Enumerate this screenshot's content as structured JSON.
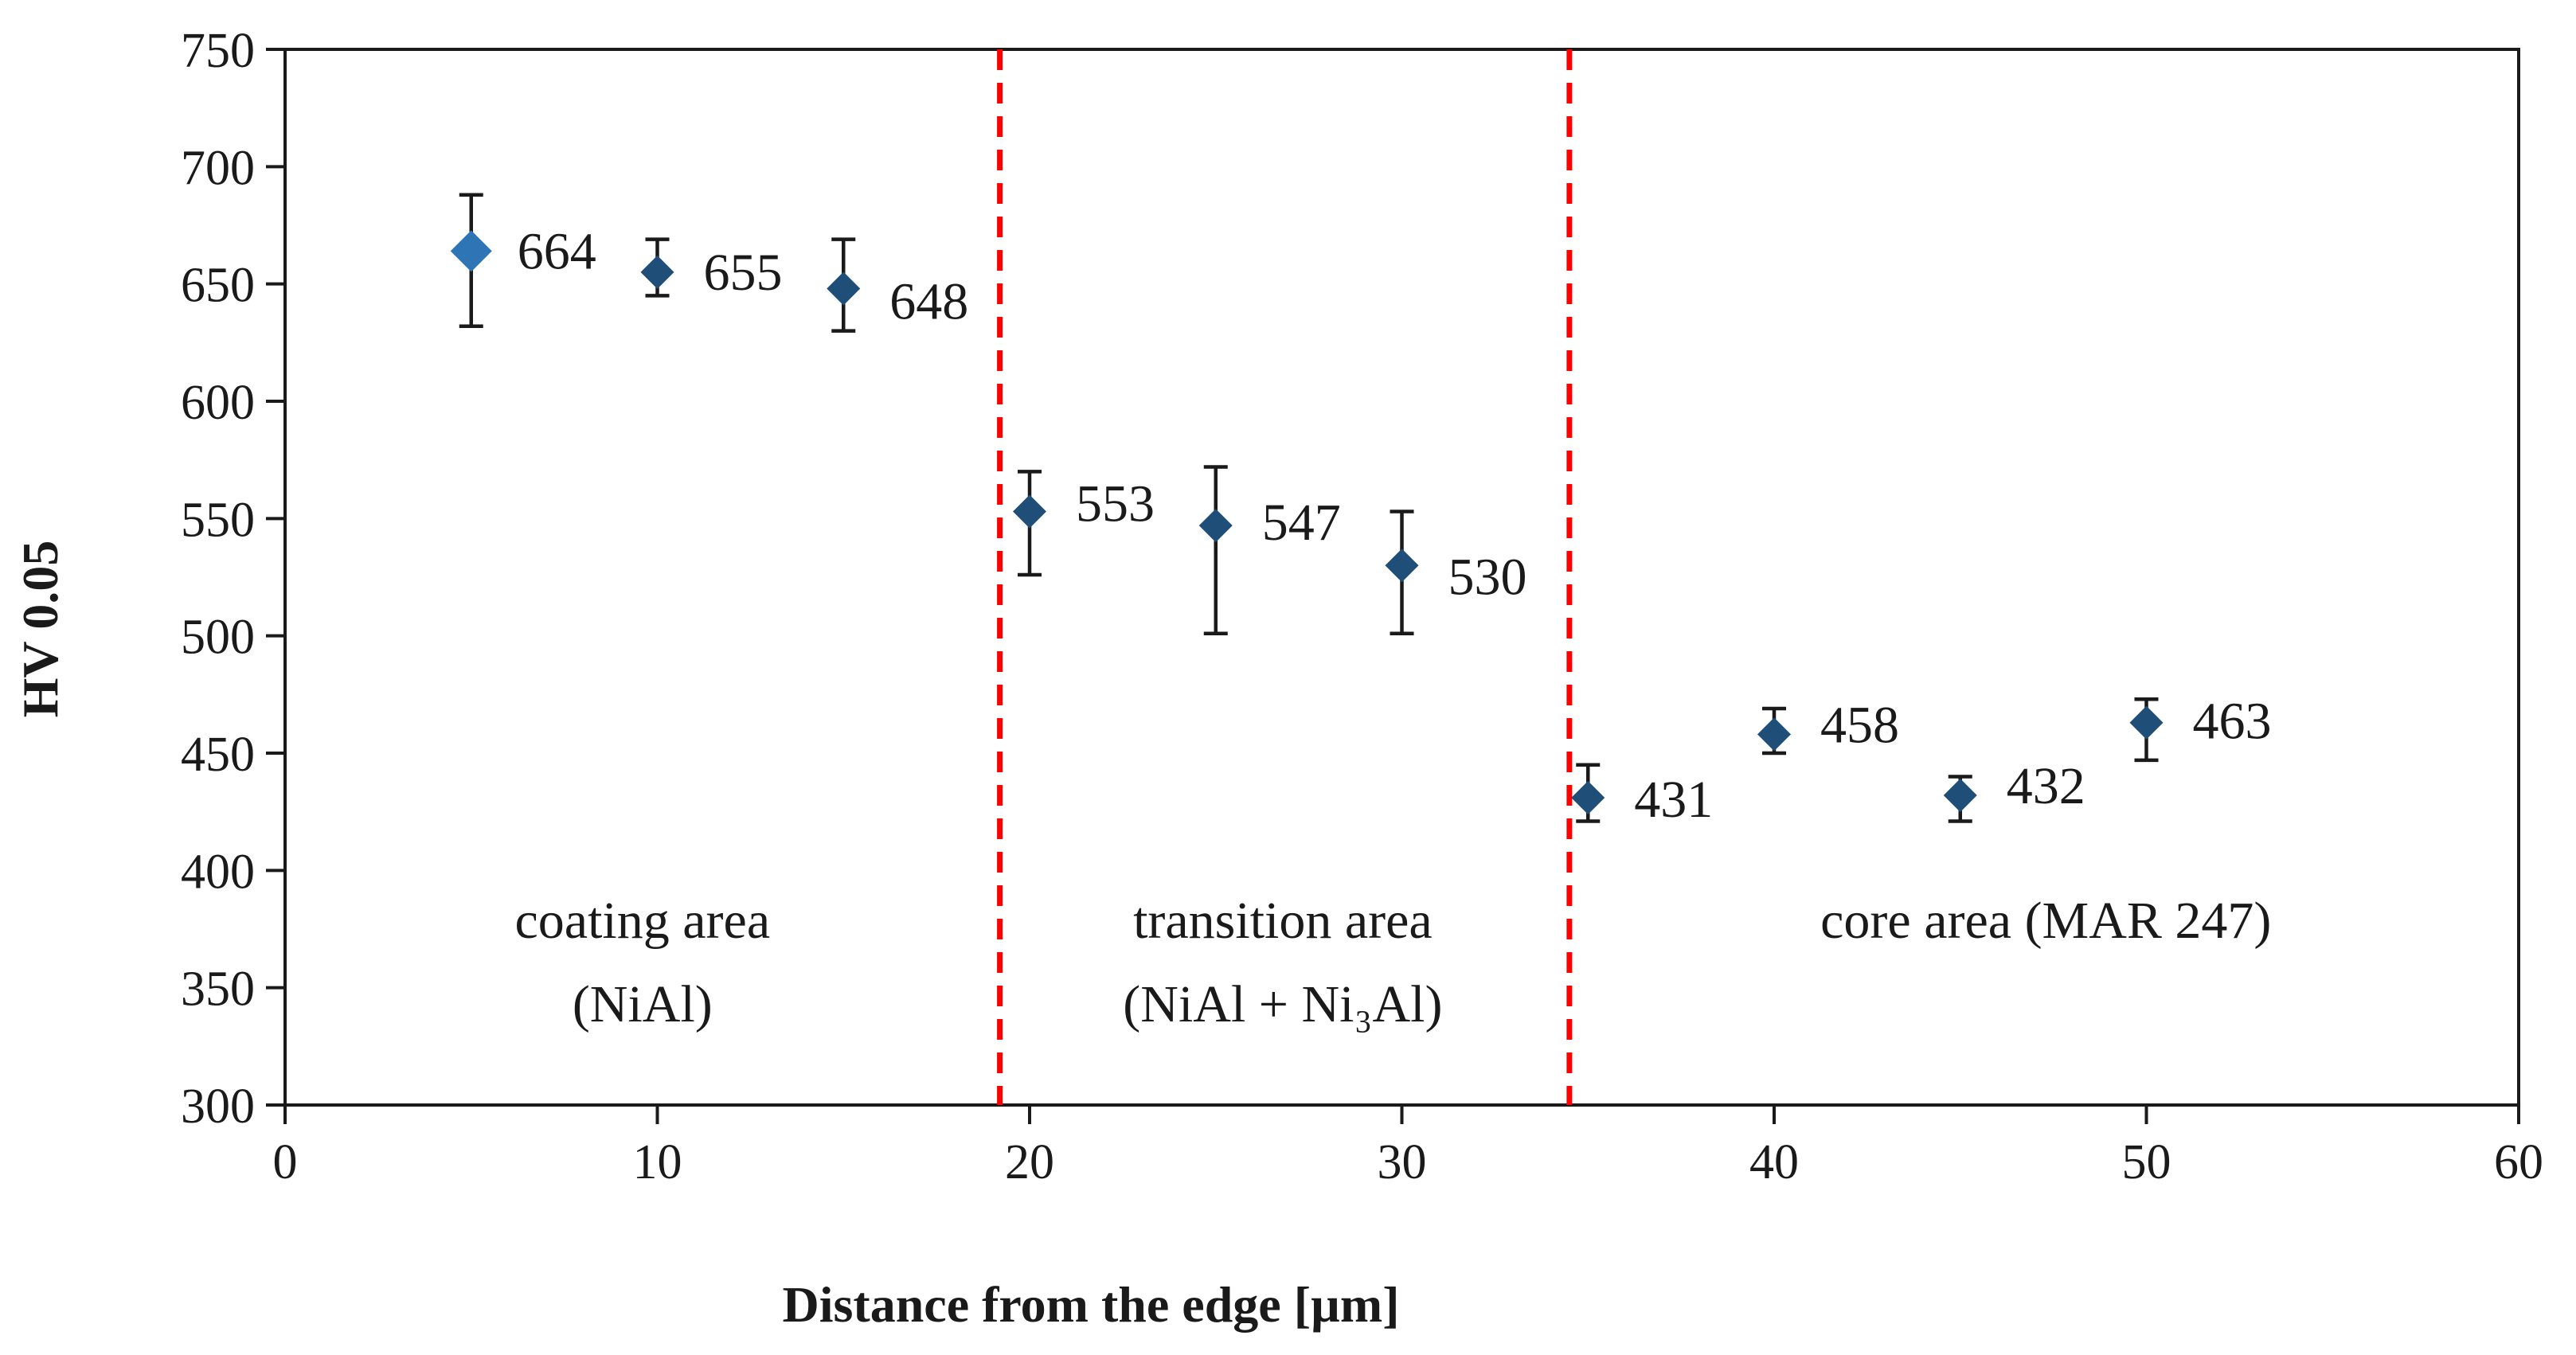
{
  "chart_data": {
    "type": "scatter",
    "title": "",
    "xlabel": "Distance from the edge [µm]",
    "ylabel": "HV 0.05",
    "xlim": [
      0,
      60
    ],
    "ylim": [
      300,
      750
    ],
    "x_ticks": [
      "0",
      "10",
      "20",
      "30",
      "40",
      "50",
      "60"
    ],
    "y_ticks": [
      "300",
      "350",
      "400",
      "450",
      "500",
      "550",
      "600",
      "650",
      "700",
      "750"
    ],
    "grid": false,
    "marker_color": "#1f4e79",
    "highlight_marker_color": "#2e75b6",
    "errorbar_color": "#1a1a1a",
    "divider_color": "#ff0000",
    "series": [
      {
        "name": "HV 0.05",
        "x": [
          5,
          10,
          15,
          20,
          25,
          30,
          35,
          40,
          45,
          50
        ],
        "y": [
          664,
          655,
          648,
          553,
          547,
          530,
          431,
          458,
          432,
          463
        ],
        "err_low": [
          632,
          645,
          630,
          526,
          501,
          501,
          421,
          450,
          421,
          447
        ],
        "err_high": [
          688,
          669,
          669,
          570,
          572,
          553,
          445,
          469,
          440,
          473
        ],
        "labels": [
          "664",
          "655",
          "648",
          "553",
          "547",
          "530",
          "431",
          "458",
          "432",
          "463"
        ]
      }
    ],
    "dividers": [
      19.2,
      34.5
    ],
    "regions": [
      {
        "line1": "coating area",
        "line2": "(NiAl)",
        "x": 9.6
      },
      {
        "line1": "transition area",
        "line2": "(NiAl + Ni₃Al)",
        "x": 26.8
      },
      {
        "line1": "core area (MAR 247)",
        "line2": "",
        "x": 47.3
      }
    ]
  }
}
